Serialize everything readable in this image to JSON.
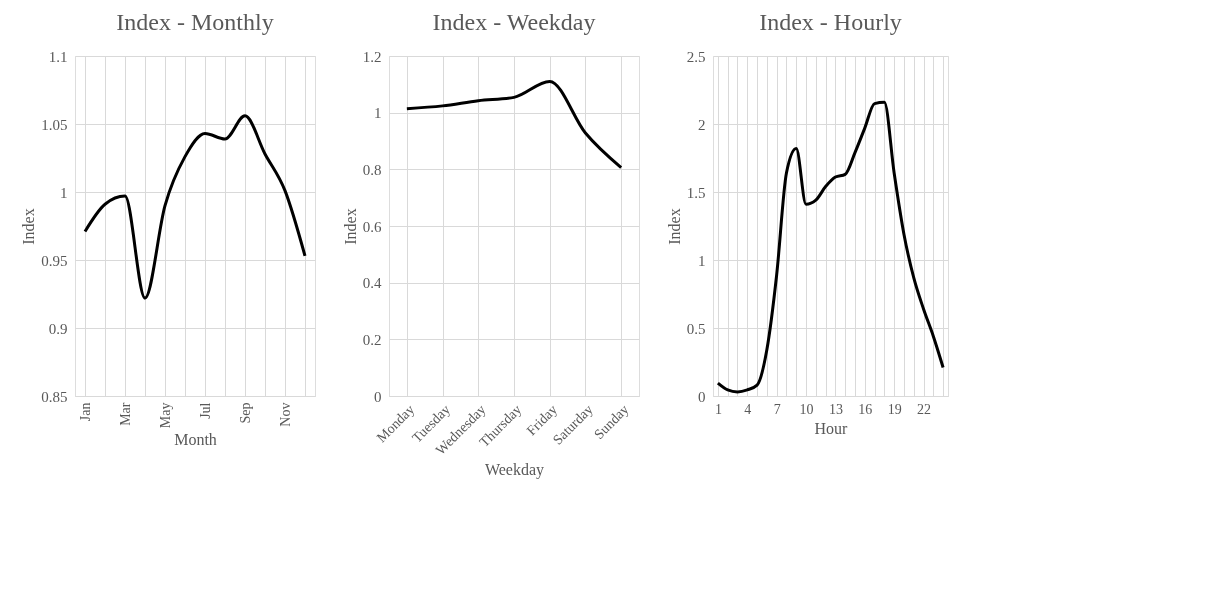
{
  "chart_data": [
    {
      "type": "line",
      "title": "Index - Monthly",
      "xlabel": "Month",
      "ylabel": "Index",
      "categories": [
        "Jan",
        null,
        "Mar",
        null,
        "May",
        null,
        "Jul",
        null,
        "Sep",
        null,
        "Nov",
        null
      ],
      "series": [
        {
          "color": "#000000",
          "values": [
            0.971,
            0.991,
            0.997,
            0.922,
            0.99,
            1.026,
            1.043,
            1.039,
            1.056,
            1.028,
            1.001,
            0.953
          ]
        }
      ],
      "ylim": [
        0.85,
        1.1
      ],
      "yticks": [
        0.85,
        {
          "value": 0.9,
          "label": "0.9"
        },
        0.95,
        {
          "value": 1,
          "label": "1"
        },
        1.05,
        {
          "value": 1.1,
          "label": "1.1"
        }
      ],
      "grid": true
    },
    {
      "type": "line",
      "title": "Index - Weekday",
      "xlabel": "Weekday",
      "ylabel": "Index",
      "categories": [
        "Monday",
        "Tuesday",
        "Wednesday",
        "Thursday",
        "Friday",
        "Saturday",
        "Sunday"
      ],
      "series": [
        {
          "color": "#000000",
          "values": [
            1.014,
            1.024,
            1.042,
            1.054,
            1.11,
            0.928,
            0.806
          ]
        }
      ],
      "ylim": [
        0,
        1.2
      ],
      "yticks": [
        {
          "value": 0,
          "label": "0"
        },
        0.2,
        0.4,
        0.6,
        0.8,
        {
          "value": 1,
          "label": "1"
        },
        1.2
      ],
      "grid": true
    },
    {
      "type": "line",
      "title": "Index - Hourly",
      "xlabel": "Hour",
      "ylabel": "Index",
      "categories": [
        "1",
        null,
        null,
        "4",
        null,
        null,
        "7",
        null,
        null,
        "10",
        null,
        null,
        "13",
        null,
        null,
        "16",
        null,
        null,
        "19",
        null,
        null,
        "22",
        null,
        null
      ],
      "series": [
        {
          "color": "#000000",
          "values": [
            0.095,
            0.045,
            0.03,
            0.045,
            0.08,
            0.34,
            0.89,
            1.64,
            1.82,
            1.41,
            1.44,
            1.54,
            1.61,
            1.63,
            1.79,
            1.97,
            2.15,
            2.16,
            1.64,
            1.19,
            0.87,
            0.64,
            0.44,
            0.21
          ]
        }
      ],
      "ylim": [
        0,
        2.5
      ],
      "yticks": [
        {
          "value": 0,
          "label": "0"
        },
        0.5,
        {
          "value": 1,
          "label": "1"
        },
        1.5,
        {
          "value": 2,
          "label": "2"
        },
        2.5
      ],
      "grid": true
    }
  ]
}
